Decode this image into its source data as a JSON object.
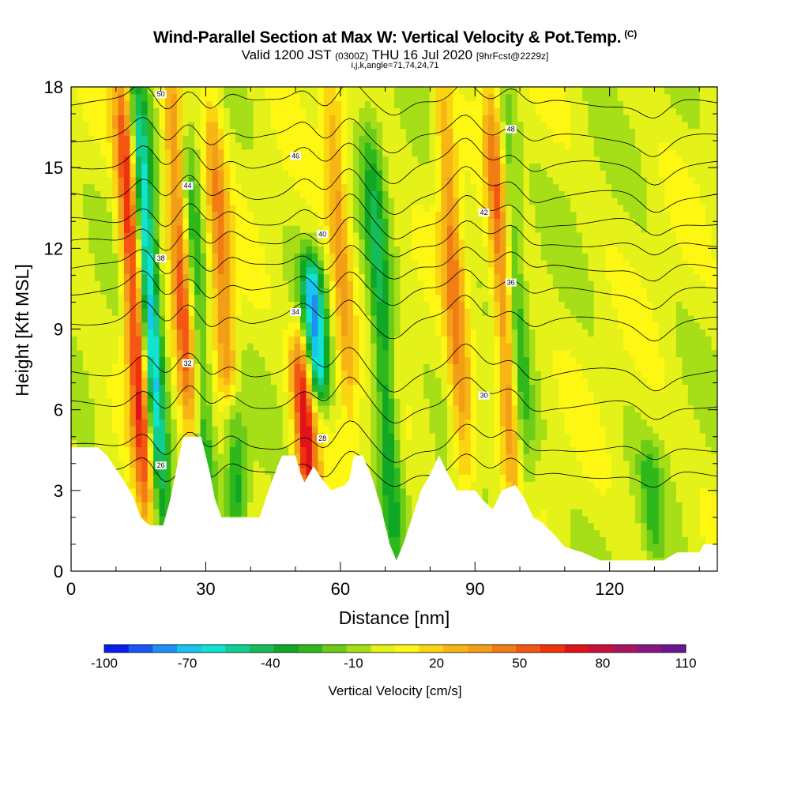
{
  "header": {
    "title": "Wind-Parallel Section at Max W: Vertical Velocity & Pot.Temp.",
    "title_tag": "(C)",
    "subtitle_main": "Valid 1200 JST",
    "subtitle_utc": "(0300Z)",
    "subtitle_date": "THU 16 Jul 2020",
    "subtitle_fcst": "[9hrFcst@2229z]",
    "indices_line": "i,j,k,angle=71,74,24,71"
  },
  "chart_data": {
    "type": "heatmap",
    "title": "Wind-Parallel Section at Max W: Vertical Velocity & Pot.Temp.",
    "xlabel": "Distance [nm]",
    "ylabel": "Height [Kft MSL]",
    "xlim": [
      0,
      144
    ],
    "ylim": [
      0,
      18
    ],
    "x_ticks": [
      0,
      30,
      60,
      90,
      120
    ],
    "y_ticks": [
      0,
      3,
      6,
      9,
      12,
      15,
      18
    ],
    "colorbar": {
      "title": "Vertical Velocity [cm/s]",
      "tick_labels": [
        "-100",
        "-70",
        "-40",
        "-10",
        "20",
        "50",
        "80",
        "110"
      ],
      "tick_values": [
        -100,
        -70,
        -40,
        -10,
        20,
        50,
        80,
        110
      ],
      "colors": [
        "#0a1ef0",
        "#1a55f5",
        "#1e90f5",
        "#17c5ef",
        "#10e3d2",
        "#10cf93",
        "#16bc55",
        "#10a726",
        "#2fb81c",
        "#6ccc18",
        "#a6de18",
        "#e4f219",
        "#fdf713",
        "#fbd610",
        "#f7b615",
        "#f29f17",
        "#f27d14",
        "#f35713",
        "#f0320d",
        "#e0131a",
        "#c9103a",
        "#a91460",
        "#8a1680",
        "#6a1690"
      ]
    },
    "upward_cores": [
      {
        "x": 17,
        "z_low": 2.5,
        "z_high": 18,
        "w": 80
      },
      {
        "x": 27,
        "z_low": 5,
        "z_high": 18,
        "w": 60
      },
      {
        "x": 36,
        "z_low": 4,
        "z_high": 17,
        "w": 40
      },
      {
        "x": 53,
        "z_low": 3,
        "z_high": 8,
        "w": 70
      },
      {
        "x": 62,
        "z_low": 6,
        "z_high": 18,
        "w": 35
      },
      {
        "x": 88,
        "z_low": 3,
        "z_high": 18,
        "w": 40
      },
      {
        "x": 99,
        "z_low": 3.5,
        "z_high": 18,
        "w": 60
      }
    ],
    "downward_cores": [
      {
        "x": 20,
        "z_low": 2,
        "z_high": 18,
        "w": -80
      },
      {
        "x": 30,
        "z_low": 3,
        "z_high": 16,
        "w": -40
      },
      {
        "x": 37,
        "z_low": 2.5,
        "z_high": 6,
        "w": -50
      },
      {
        "x": 55,
        "z_low": 7,
        "z_high": 11,
        "w": -70
      },
      {
        "x": 72,
        "z_low": 1,
        "z_high": 16,
        "w": -40
      },
      {
        "x": 101,
        "z_low": 3,
        "z_high": 18,
        "w": -40
      },
      {
        "x": 130,
        "z_low": 1,
        "z_high": 4,
        "w": -20
      }
    ],
    "terrain": [
      {
        "x": 0,
        "z": 4.6
      },
      {
        "x": 6,
        "z": 4.6
      },
      {
        "x": 8,
        "z": 4.3
      },
      {
        "x": 10,
        "z": 3.8
      },
      {
        "x": 12,
        "z": 3.3
      },
      {
        "x": 14,
        "z": 2.7
      },
      {
        "x": 15.5,
        "z": 2.0
      },
      {
        "x": 17.5,
        "z": 1.7
      },
      {
        "x": 20.5,
        "z": 1.7
      },
      {
        "x": 22,
        "z": 2.6
      },
      {
        "x": 24,
        "z": 4.2
      },
      {
        "x": 25,
        "z": 5.0
      },
      {
        "x": 29,
        "z": 5.0
      },
      {
        "x": 30,
        "z": 4.3
      },
      {
        "x": 31,
        "z": 3.6
      },
      {
        "x": 32,
        "z": 2.7
      },
      {
        "x": 33.5,
        "z": 2.0
      },
      {
        "x": 42,
        "z": 2.0
      },
      {
        "x": 44,
        "z": 3.0
      },
      {
        "x": 46,
        "z": 3.9
      },
      {
        "x": 47,
        "z": 4.3
      },
      {
        "x": 50,
        "z": 4.3
      },
      {
        "x": 51,
        "z": 3.7
      },
      {
        "x": 52,
        "z": 3.3
      },
      {
        "x": 54,
        "z": 3.9
      },
      {
        "x": 56,
        "z": 3.4
      },
      {
        "x": 58,
        "z": 3.0
      },
      {
        "x": 61,
        "z": 3.2
      },
      {
        "x": 62,
        "z": 3.4
      },
      {
        "x": 63,
        "z": 4.3
      },
      {
        "x": 65,
        "z": 4.3
      },
      {
        "x": 67,
        "z": 3.5
      },
      {
        "x": 69,
        "z": 2.4
      },
      {
        "x": 71,
        "z": 1.0
      },
      {
        "x": 72.5,
        "z": 0.4
      },
      {
        "x": 74,
        "z": 1.0
      },
      {
        "x": 76,
        "z": 2.0
      },
      {
        "x": 78,
        "z": 3.0
      },
      {
        "x": 80,
        "z": 3.6
      },
      {
        "x": 82,
        "z": 4.3
      },
      {
        "x": 84,
        "z": 3.6
      },
      {
        "x": 86,
        "z": 3.0
      },
      {
        "x": 90,
        "z": 3.0
      },
      {
        "x": 92,
        "z": 2.6
      },
      {
        "x": 94,
        "z": 2.3
      },
      {
        "x": 96,
        "z": 3.0
      },
      {
        "x": 99,
        "z": 3.2
      },
      {
        "x": 101,
        "z": 2.7
      },
      {
        "x": 103,
        "z": 2.0
      },
      {
        "x": 105,
        "z": 1.8
      },
      {
        "x": 108,
        "z": 1.3
      },
      {
        "x": 110,
        "z": 0.9
      },
      {
        "x": 114,
        "z": 0.7
      },
      {
        "x": 118,
        "z": 0.4
      },
      {
        "x": 132,
        "z": 0.4
      },
      {
        "x": 135,
        "z": 0.7
      },
      {
        "x": 140,
        "z": 0.7
      },
      {
        "x": 141,
        "z": 1.0
      },
      {
        "x": 144,
        "z": 1.0
      }
    ],
    "isentropes": [
      {
        "label": "26",
        "z": 3.6
      },
      {
        "label": "28",
        "z": 4.6
      },
      {
        "label": "30",
        "z": 6.2
      },
      {
        "label": "32",
        "z": 7.4
      },
      {
        "label": "34",
        "z": 9.3
      },
      {
        "label": "36",
        "z": 10.4
      },
      {
        "label": "38",
        "z": 11.3
      },
      {
        "label": "40",
        "z": 12.2
      },
      {
        "label": "42",
        "z": 13.0
      },
      {
        "label": "44",
        "z": 14.0
      },
      {
        "label": "46",
        "z": 15.1
      },
      {
        "label": "48",
        "z": 16.1
      },
      {
        "label": "50",
        "z": 17.4
      }
    ]
  }
}
